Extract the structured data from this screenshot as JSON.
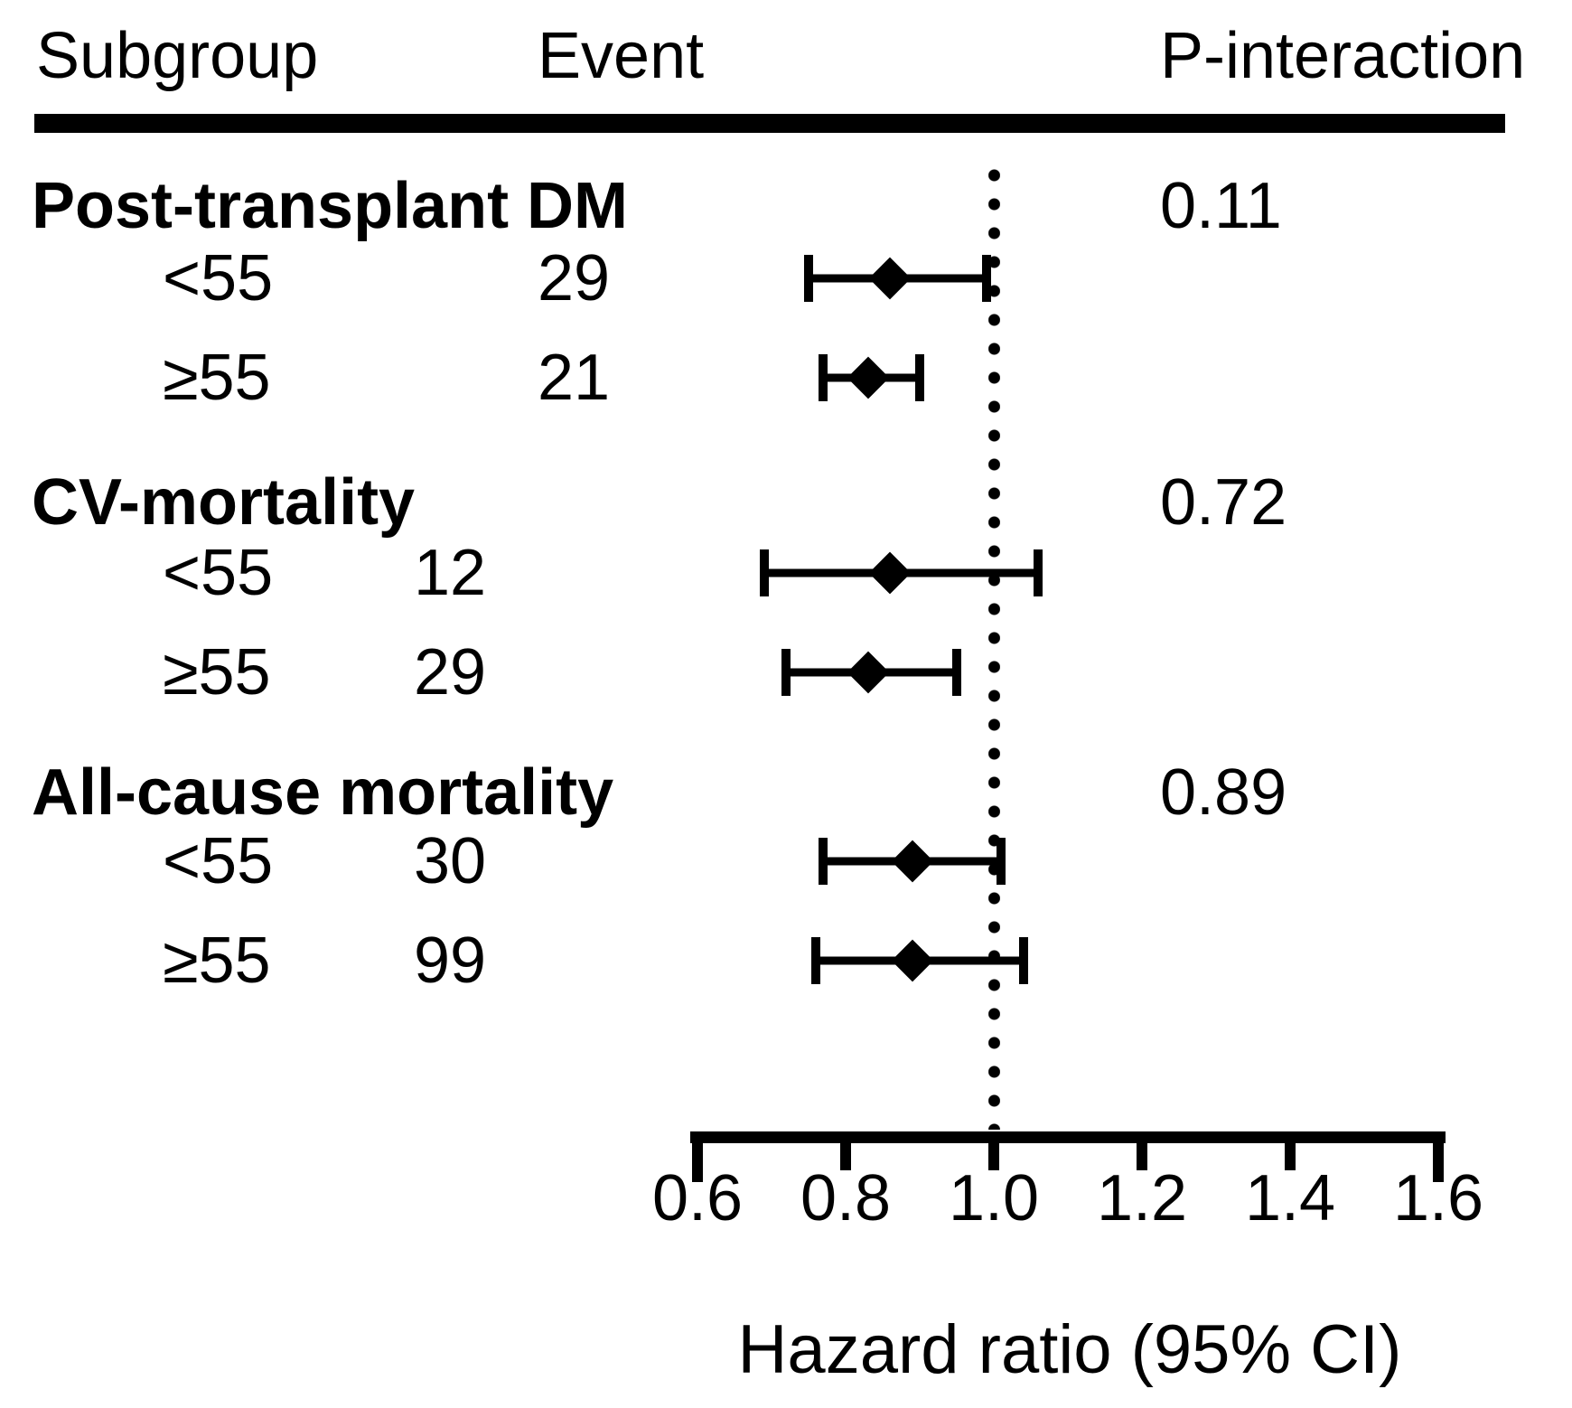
{
  "header": {
    "subgroup": "Subgroup",
    "event": "Event",
    "p_interaction": "P-interaction"
  },
  "axis": {
    "label": "Hazard ratio (95% CI)",
    "min": 0.6,
    "max": 1.6,
    "ticks": [
      {
        "value": 0.6,
        "label": "0.6"
      },
      {
        "value": 0.8,
        "label": "0.8"
      },
      {
        "value": 1.0,
        "label": "1.0"
      },
      {
        "value": 1.2,
        "label": "1.2"
      },
      {
        "value": 1.4,
        "label": "1.4"
      },
      {
        "value": 1.6,
        "label": "1.6"
      }
    ],
    "reference_line": 1.0
  },
  "colors": {
    "foreground": "#000000",
    "background": "#ffffff"
  },
  "chart_data": {
    "type": "forest",
    "title": "",
    "xlabel": "Hazard ratio (95% CI)",
    "xlim": [
      0.6,
      1.6
    ],
    "reference_value": 1.0,
    "groups": [
      {
        "name": "Post-transplant DM",
        "p_interaction": "0.11",
        "rows": [
          {
            "subgroup": "<55",
            "event": "29",
            "hr": 0.86,
            "ci_low": 0.75,
            "ci_high": 0.99
          },
          {
            "subgroup": "≥55",
            "event": "21",
            "hr": 0.83,
            "ci_low": 0.77,
            "ci_high": 0.9
          }
        ]
      },
      {
        "name": "CV-mortality",
        "p_interaction": "0.72",
        "rows": [
          {
            "subgroup": "<55",
            "event": "12",
            "hr": 0.86,
            "ci_low": 0.69,
            "ci_high": 1.06
          },
          {
            "subgroup": "≥55",
            "event": "29",
            "hr": 0.83,
            "ci_low": 0.72,
            "ci_high": 0.95
          }
        ]
      },
      {
        "name": "All-cause mortality",
        "p_interaction": "0.89",
        "rows": [
          {
            "subgroup": "<55",
            "event": "30",
            "hr": 0.89,
            "ci_low": 0.77,
            "ci_high": 1.01
          },
          {
            "subgroup": "≥55",
            "event": "99",
            "hr": 0.89,
            "ci_low": 0.76,
            "ci_high": 1.04
          }
        ]
      }
    ]
  }
}
